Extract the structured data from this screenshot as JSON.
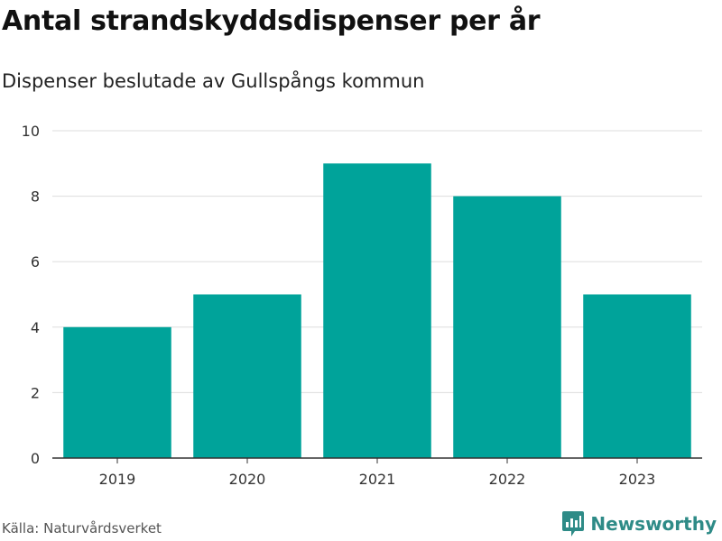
{
  "header": {
    "title": "Antal strandskyddsdispenser per år",
    "subtitle": "Dispenser beslutade av Gullspångs kommun"
  },
  "footer": {
    "source": "Källa: Naturvårdsverket",
    "brand": "Newsworthy",
    "brand_icon": "bar-chart-logo-icon"
  },
  "colors": {
    "bar": "#00a39a",
    "brand": "#2e8b87",
    "grid": "#dddddd",
    "axis": "#333333"
  },
  "chart_data": {
    "type": "bar",
    "title": "Antal strandskyddsdispenser per år",
    "subtitle": "Dispenser beslutade av Gullspångs kommun",
    "categories": [
      "2019",
      "2020",
      "2021",
      "2022",
      "2023"
    ],
    "values": [
      4,
      5,
      9,
      8,
      5
    ],
    "xlabel": "",
    "ylabel": "",
    "ylim": [
      0,
      10
    ],
    "yticks": [
      0,
      2,
      4,
      6,
      8,
      10
    ],
    "grid": true,
    "legend": "none"
  }
}
